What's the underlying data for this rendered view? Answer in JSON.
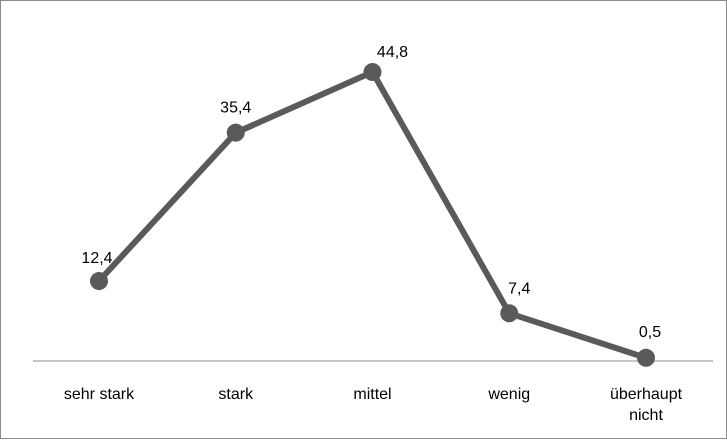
{
  "chart_data": {
    "type": "line",
    "title": "",
    "xlabel": "",
    "ylabel": "",
    "categories": [
      "sehr stark",
      "stark",
      "mittel",
      "wenig",
      "überhaupt nicht"
    ],
    "values": [
      12.4,
      35.4,
      44.8,
      7.4,
      0.5
    ],
    "data_labels": [
      "12,4",
      "35,4",
      "44,8",
      "7,4",
      "0,5"
    ],
    "ylim": [
      0,
      50
    ],
    "grid": false,
    "legend": "none",
    "colors": {
      "line": "#5a5a5a",
      "marker": "#5a5a5a",
      "axis": "#8c8c8c",
      "border": "#8c8c8c"
    }
  }
}
